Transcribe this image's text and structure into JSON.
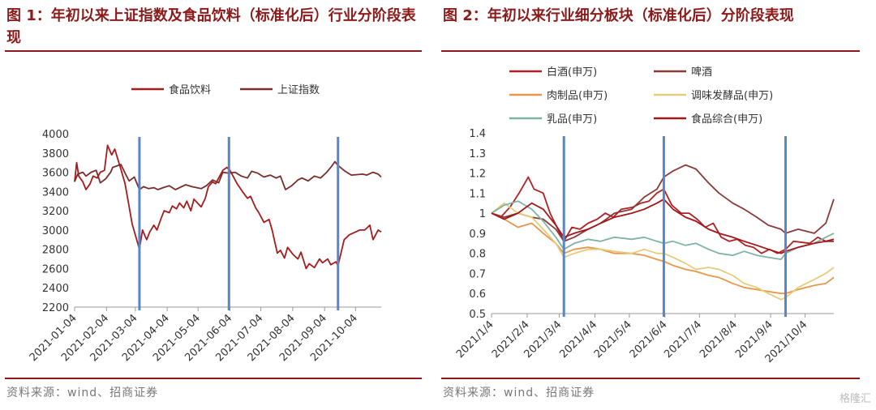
{
  "figure1": {
    "title": "图 1：年初以来上证指数及食品饮料（标准化后）行业分阶段表现",
    "source": "资料来源：wind、招商证券",
    "chart_data": {
      "type": "line",
      "ylim": [
        2200,
        4000
      ],
      "yticks": [
        2200,
        2400,
        2600,
        2800,
        3000,
        3200,
        3400,
        3600,
        3800,
        4000
      ],
      "xticks": [
        "2021-01-04",
        "2021-02-04",
        "2021-03-04",
        "2021-04-04",
        "2021-05-04",
        "2021-06-04",
        "2021-07-04",
        "2021-08-04",
        "2021-09-04",
        "2021-10-04"
      ],
      "xrange": [
        "2021-01-04",
        "2021-10-29"
      ],
      "vlines": [
        "2021-03-08",
        "2021-06-03",
        "2021-09-17"
      ],
      "legend_position": "top",
      "series": [
        {
          "name": "食品饮料",
          "color": "#A61C1C",
          "x": [
            "2021-01-04",
            "2021-01-06",
            "2021-01-08",
            "2021-01-12",
            "2021-01-15",
            "2021-01-19",
            "2021-01-22",
            "2021-01-26",
            "2021-01-29",
            "2021-02-02",
            "2021-02-05",
            "2021-02-09",
            "2021-02-12",
            "2021-02-18",
            "2021-02-22",
            "2021-02-25",
            "2021-03-01",
            "2021-03-04",
            "2021-03-08",
            "2021-03-11",
            "2021-03-15",
            "2021-03-18",
            "2021-03-22",
            "2021-03-25",
            "2021-03-29",
            "2021-04-01",
            "2021-04-06",
            "2021-04-09",
            "2021-04-13",
            "2021-04-16",
            "2021-04-20",
            "2021-04-23",
            "2021-04-27",
            "2021-04-30",
            "2021-05-07",
            "2021-05-11",
            "2021-05-14",
            "2021-05-18",
            "2021-05-21",
            "2021-05-25",
            "2021-05-28",
            "2021-06-01",
            "2021-06-04",
            "2021-06-08",
            "2021-06-11",
            "2021-06-16",
            "2021-06-21",
            "2021-06-24",
            "2021-06-29",
            "2021-07-02",
            "2021-07-07",
            "2021-07-12",
            "2021-07-15",
            "2021-07-20",
            "2021-07-23",
            "2021-07-27",
            "2021-07-30",
            "2021-08-04",
            "2021-08-09",
            "2021-08-12",
            "2021-08-17",
            "2021-08-20",
            "2021-08-25",
            "2021-08-30",
            "2021-09-02",
            "2021-09-07",
            "2021-09-10",
            "2021-09-15",
            "2021-09-17",
            "2021-09-23",
            "2021-09-28",
            "2021-10-08",
            "2021-10-13",
            "2021-10-18",
            "2021-10-21",
            "2021-10-26",
            "2021-10-29"
          ],
          "values": [
            3500,
            3700,
            3560,
            3500,
            3420,
            3480,
            3560,
            3540,
            3600,
            3620,
            3880,
            3780,
            3840,
            3630,
            3480,
            3300,
            3060,
            2950,
            2800,
            3000,
            2900,
            2980,
            3050,
            3000,
            3120,
            3200,
            3180,
            3250,
            3220,
            3280,
            3230,
            3300,
            3200,
            3320,
            3240,
            3330,
            3450,
            3500,
            3480,
            3560,
            3620,
            3650,
            3620,
            3540,
            3480,
            3400,
            3330,
            3350,
            3230,
            3180,
            3080,
            3110,
            3000,
            2760,
            2790,
            2710,
            2820,
            2750,
            2700,
            2770,
            2600,
            2650,
            2610,
            2700,
            2660,
            2700,
            2640,
            2670,
            2630,
            2900,
            2950,
            3000,
            3000,
            3050,
            2900,
            3000,
            2980
          ]
        },
        {
          "name": "上证指数",
          "color": "#7B2D2D",
          "x": [
            "2021-01-04",
            "2021-01-07",
            "2021-01-12",
            "2021-01-15",
            "2021-01-20",
            "2021-01-25",
            "2021-01-29",
            "2021-02-03",
            "2021-02-08",
            "2021-02-10",
            "2021-02-18",
            "2021-02-23",
            "2021-02-26",
            "2021-03-03",
            "2021-03-08",
            "2021-03-12",
            "2021-03-17",
            "2021-03-22",
            "2021-03-26",
            "2021-03-31",
            "2021-04-06",
            "2021-04-12",
            "2021-04-16",
            "2021-04-22",
            "2021-04-28",
            "2021-05-07",
            "2021-05-12",
            "2021-05-18",
            "2021-05-24",
            "2021-05-28",
            "2021-06-03",
            "2021-06-09",
            "2021-06-15",
            "2021-06-21",
            "2021-06-25",
            "2021-07-01",
            "2021-07-07",
            "2021-07-13",
            "2021-07-19",
            "2021-07-23",
            "2021-07-28",
            "2021-08-03",
            "2021-08-09",
            "2021-08-13",
            "2021-08-19",
            "2021-08-25",
            "2021-08-31",
            "2021-09-06",
            "2021-09-10",
            "2021-09-14",
            "2021-09-17",
            "2021-09-24",
            "2021-09-30",
            "2021-10-11",
            "2021-10-15",
            "2021-10-21",
            "2021-10-26",
            "2021-10-29"
          ],
          "values": [
            3502,
            3580,
            3600,
            3560,
            3600,
            3620,
            3490,
            3530,
            3600,
            3650,
            3680,
            3570,
            3510,
            3550,
            3420,
            3450,
            3430,
            3440,
            3420,
            3440,
            3460,
            3420,
            3440,
            3470,
            3450,
            3430,
            3460,
            3520,
            3490,
            3600,
            3590,
            3600,
            3560,
            3540,
            3610,
            3590,
            3550,
            3570,
            3540,
            3560,
            3420,
            3460,
            3520,
            3540,
            3510,
            3560,
            3540,
            3600,
            3650,
            3710,
            3670,
            3610,
            3570,
            3580,
            3570,
            3600,
            3580,
            3550
          ]
        }
      ]
    }
  },
  "figure2": {
    "title": "图 2：年初以来行业细分板块（标准化后）分阶段表现",
    "source": "资料来源：wind、招商证券",
    "chart_data": {
      "type": "line",
      "ylim": [
        0.5,
        1.4
      ],
      "yticks": [
        0.5,
        0.6,
        0.7,
        0.8,
        0.9,
        1,
        1.1,
        1.2,
        1.3,
        1.4
      ],
      "xticks": [
        "2021/1/4",
        "2021/2/4",
        "2021/3/4",
        "2021/4/4",
        "2021/5/4",
        "2021/6/4",
        "2021/7/4",
        "2021/8/4",
        "2021/9/4",
        "2021/10/4"
      ],
      "xrange": [
        "2021/1/4",
        "2021/10/29"
      ],
      "vlines": [
        "2021/3/8",
        "2021/6/3",
        "2021/9/17"
      ],
      "legend_position": "top",
      "series": [
        {
          "name": "白酒(申万)",
          "color": "#B22222",
          "x": [
            "2021/1/4",
            "2021/1/12",
            "2021/1/20",
            "2021/1/28",
            "2021/2/5",
            "2021/2/10",
            "2021/2/18",
            "2021/2/24",
            "2021/3/2",
            "2021/3/8",
            "2021/3/15",
            "2021/3/22",
            "2021/3/29",
            "2021/4/6",
            "2021/4/13",
            "2021/4/20",
            "2021/4/27",
            "2021/5/7",
            "2021/5/14",
            "2021/5/21",
            "2021/5/28",
            "2021/6/3",
            "2021/6/10",
            "2021/6/18",
            "2021/6/25",
            "2021/7/2",
            "2021/7/9",
            "2021/7/16",
            "2021/7/23",
            "2021/7/30",
            "2021/8/6",
            "2021/8/13",
            "2021/8/20",
            "2021/8/27",
            "2021/9/3",
            "2021/9/10",
            "2021/9/17",
            "2021/9/24",
            "2021/10/8",
            "2021/10/15",
            "2021/10/22",
            "2021/10/29"
          ],
          "values": [
            1.0,
            0.98,
            1.03,
            1.1,
            1.18,
            1.12,
            1.1,
            1.0,
            0.93,
            0.86,
            0.93,
            0.92,
            0.95,
            0.97,
            1.0,
            0.98,
            1.02,
            1.03,
            1.05,
            1.06,
            1.1,
            1.12,
            1.04,
            1.0,
            1.0,
            0.97,
            0.93,
            0.95,
            0.88,
            0.86,
            0.87,
            0.84,
            0.83,
            0.8,
            0.82,
            0.8,
            0.82,
            0.86,
            0.85,
            0.88,
            0.86,
            0.86
          ]
        },
        {
          "name": "啤酒",
          "color": "#8B3A3A",
          "x": [
            "2021/1/4",
            "2021/1/15",
            "2021/1/27",
            "2021/2/8",
            "2021/2/18",
            "2021/3/1",
            "2021/3/8",
            "2021/3/17",
            "2021/3/29",
            "2021/4/9",
            "2021/4/21",
            "2021/5/6",
            "2021/5/17",
            "2021/5/28",
            "2021/6/3",
            "2021/6/11",
            "2021/6/22",
            "2021/7/1",
            "2021/7/12",
            "2021/7/21",
            "2021/8/2",
            "2021/8/12",
            "2021/8/23",
            "2021/9/2",
            "2021/9/13",
            "2021/9/17",
            "2021/9/28",
            "2021/10/12",
            "2021/10/22",
            "2021/10/29"
          ],
          "values": [
            1.0,
            0.98,
            1.0,
            0.98,
            0.97,
            0.92,
            0.86,
            0.88,
            0.92,
            0.95,
            1.0,
            1.02,
            1.08,
            1.12,
            1.18,
            1.21,
            1.24,
            1.22,
            1.15,
            1.1,
            1.05,
            1.02,
            0.98,
            0.94,
            0.92,
            0.9,
            0.92,
            0.9,
            0.95,
            1.07
          ]
        },
        {
          "name": "肉制品(申万)",
          "color": "#E8964A",
          "x": [
            "2021/1/4",
            "2021/1/15",
            "2021/1/27",
            "2021/2/8",
            "2021/2/18",
            "2021/3/1",
            "2021/3/8",
            "2021/3/17",
            "2021/3/29",
            "2021/4/9",
            "2021/4/21",
            "2021/5/6",
            "2021/5/17",
            "2021/5/28",
            "2021/6/3",
            "2021/6/11",
            "2021/6/22",
            "2021/7/1",
            "2021/7/12",
            "2021/7/21",
            "2021/8/2",
            "2021/8/12",
            "2021/8/23",
            "2021/9/2",
            "2021/9/13",
            "2021/9/17",
            "2021/9/28",
            "2021/10/12",
            "2021/10/22",
            "2021/10/29"
          ],
          "values": [
            1.0,
            0.97,
            0.93,
            0.95,
            0.9,
            0.85,
            0.8,
            0.82,
            0.83,
            0.82,
            0.8,
            0.8,
            0.79,
            0.77,
            0.76,
            0.74,
            0.72,
            0.71,
            0.69,
            0.68,
            0.65,
            0.63,
            0.62,
            0.61,
            0.6,
            0.6,
            0.62,
            0.64,
            0.65,
            0.68
          ]
        },
        {
          "name": "调味发酵品(申万)",
          "color": "#E6CC7A",
          "x": [
            "2021/1/4",
            "2021/1/15",
            "2021/1/27",
            "2021/2/8",
            "2021/2/18",
            "2021/3/1",
            "2021/3/8",
            "2021/3/17",
            "2021/3/29",
            "2021/4/9",
            "2021/4/21",
            "2021/5/6",
            "2021/5/17",
            "2021/5/28",
            "2021/6/3",
            "2021/6/11",
            "2021/6/22",
            "2021/7/1",
            "2021/7/12",
            "2021/7/21",
            "2021/8/2",
            "2021/8/12",
            "2021/8/23",
            "2021/9/2",
            "2021/9/13",
            "2021/9/17",
            "2021/9/28",
            "2021/10/12",
            "2021/10/22",
            "2021/10/29"
          ],
          "values": [
            1.0,
            1.05,
            1.0,
            0.98,
            0.92,
            0.85,
            0.78,
            0.8,
            0.82,
            0.82,
            0.81,
            0.8,
            0.82,
            0.8,
            0.8,
            0.78,
            0.75,
            0.72,
            0.73,
            0.72,
            0.69,
            0.65,
            0.63,
            0.6,
            0.57,
            0.58,
            0.63,
            0.67,
            0.7,
            0.73
          ]
        },
        {
          "name": "乳品(申万)",
          "color": "#7FB3A6",
          "x": [
            "2021/1/4",
            "2021/1/15",
            "2021/1/27",
            "2021/2/8",
            "2021/2/18",
            "2021/3/1",
            "2021/3/8",
            "2021/3/17",
            "2021/3/29",
            "2021/4/9",
            "2021/4/21",
            "2021/5/6",
            "2021/5/17",
            "2021/5/28",
            "2021/6/3",
            "2021/6/11",
            "2021/6/22",
            "2021/7/1",
            "2021/7/12",
            "2021/7/21",
            "2021/8/2",
            "2021/8/12",
            "2021/8/23",
            "2021/9/2",
            "2021/9/13",
            "2021/9/17",
            "2021/9/28",
            "2021/10/12",
            "2021/10/22",
            "2021/10/29"
          ],
          "values": [
            1.0,
            1.04,
            1.06,
            1.02,
            0.96,
            0.88,
            0.82,
            0.85,
            0.87,
            0.86,
            0.88,
            0.87,
            0.88,
            0.86,
            0.85,
            0.86,
            0.84,
            0.85,
            0.82,
            0.8,
            0.79,
            0.81,
            0.79,
            0.78,
            0.77,
            0.8,
            0.83,
            0.85,
            0.88,
            0.9
          ]
        },
        {
          "name": "食品综合(申万)",
          "color": "#A3161A",
          "x": [
            "2021/1/4",
            "2021/1/15",
            "2021/1/27",
            "2021/2/8",
            "2021/2/18",
            "2021/3/1",
            "2021/3/8",
            "2021/3/17",
            "2021/3/29",
            "2021/4/9",
            "2021/4/21",
            "2021/5/6",
            "2021/5/17",
            "2021/5/28",
            "2021/6/3",
            "2021/6/11",
            "2021/6/22",
            "2021/7/1",
            "2021/7/12",
            "2021/7/21",
            "2021/8/2",
            "2021/8/12",
            "2021/8/23",
            "2021/9/2",
            "2021/9/13",
            "2021/9/17",
            "2021/9/28",
            "2021/10/12",
            "2021/10/22",
            "2021/10/29"
          ],
          "values": [
            1.0,
            0.97,
            1.0,
            1.05,
            1.02,
            0.94,
            0.88,
            0.9,
            0.92,
            0.95,
            0.98,
            1.0,
            1.02,
            1.05,
            1.07,
            1.02,
            0.98,
            0.96,
            0.92,
            0.9,
            0.88,
            0.86,
            0.84,
            0.82,
            0.8,
            0.81,
            0.83,
            0.85,
            0.86,
            0.87
          ]
        }
      ]
    }
  },
  "watermark": "格隆汇"
}
